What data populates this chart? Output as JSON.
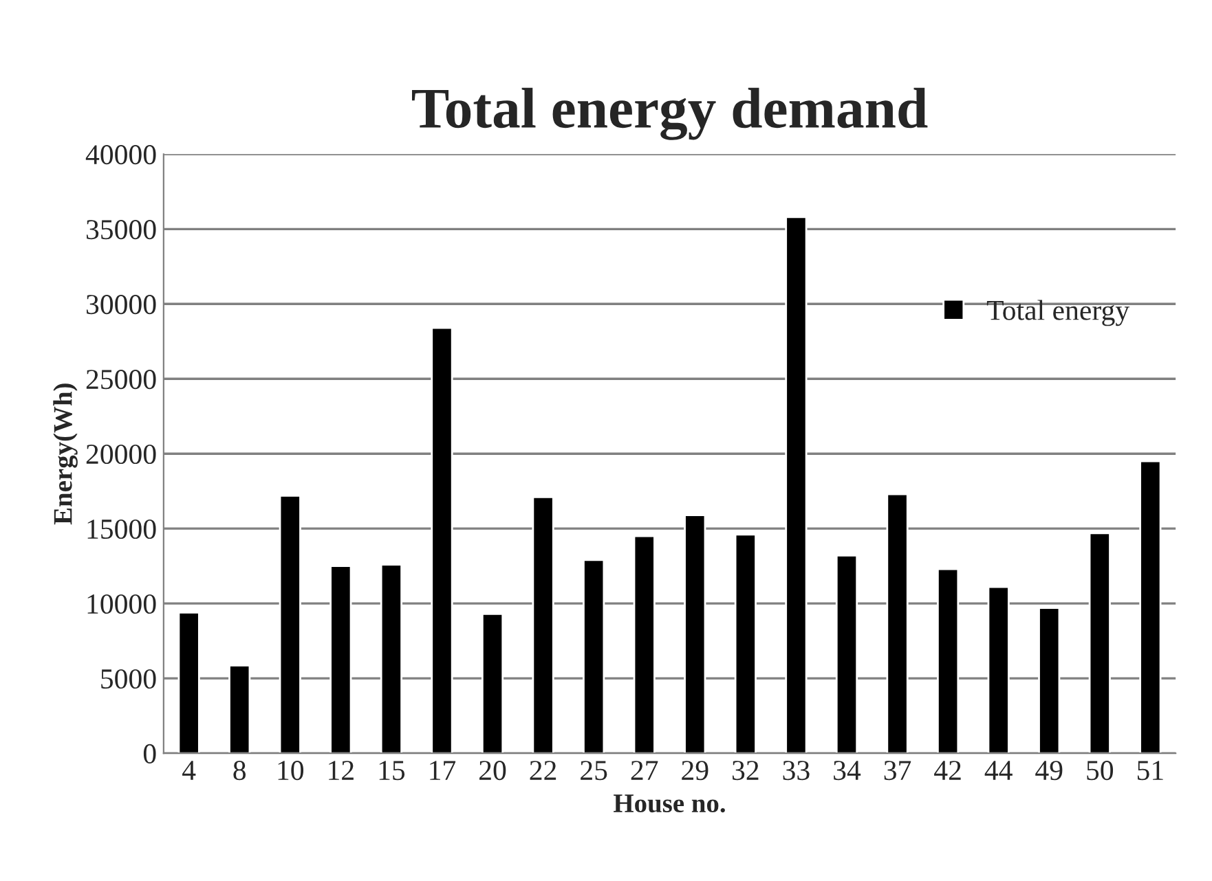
{
  "chart_data": {
    "type": "bar",
    "title": "Total energy demand",
    "xlabel": "House no.",
    "ylabel": "Energy(Wh)",
    "categories": [
      "4",
      "8",
      "10",
      "12",
      "15",
      "17",
      "20",
      "22",
      "25",
      "27",
      "29",
      "32",
      "33",
      "34",
      "37",
      "42",
      "44",
      "49",
      "50",
      "51"
    ],
    "series": [
      {
        "name": "Total energy",
        "color": "#000000",
        "values": [
          9400,
          5860,
          17200,
          12500,
          12600,
          28400,
          9300,
          17100,
          12900,
          14500,
          15900,
          14600,
          35800,
          13200,
          17300,
          12300,
          11100,
          9700,
          14700,
          19500
        ]
      }
    ],
    "ylim": [
      0,
      40000
    ],
    "yticks": [
      0,
      5000,
      10000,
      15000,
      20000,
      25000,
      30000,
      35000,
      40000
    ],
    "grid": "y",
    "legend": "top right"
  }
}
